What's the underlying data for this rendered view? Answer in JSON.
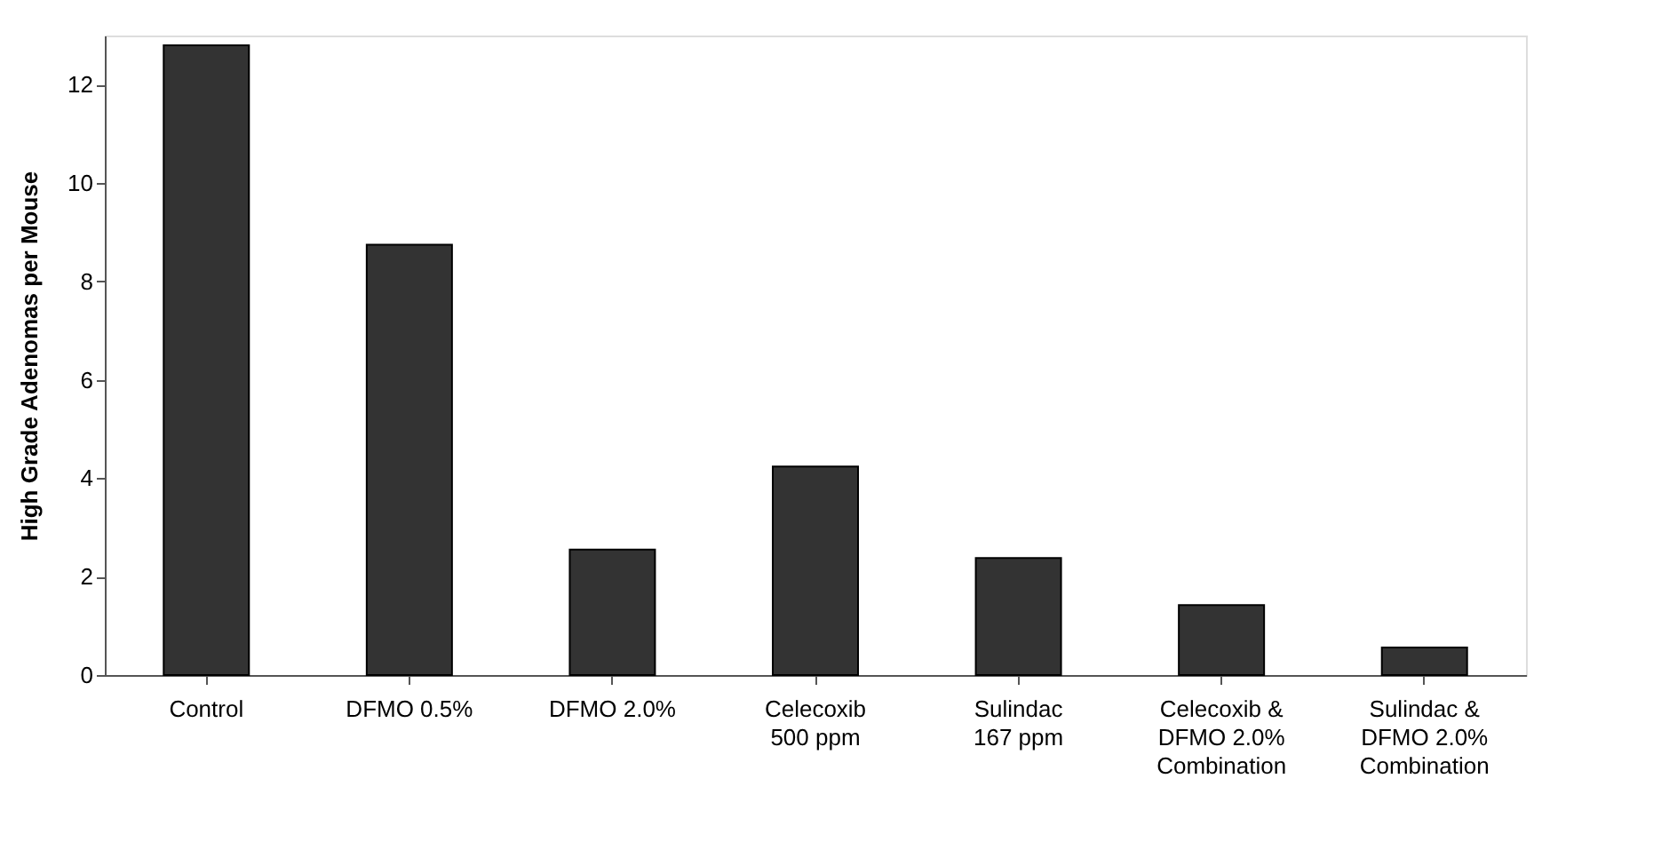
{
  "chart_data": {
    "type": "bar",
    "ylabel": "High Grade Adenomas per Mouse",
    "categories": [
      "Control",
      "DFMO 0.5%",
      "DFMO 2.0%",
      "Celecoxib\n500 ppm",
      "Sulindac\n167 ppm",
      "Celecoxib &\nDFMO 2.0%\nCombination",
      "Sulindac &\nDFMO 2.0%\nCombination"
    ],
    "values": [
      12.8,
      8.75,
      2.55,
      4.24,
      2.38,
      1.42,
      0.56
    ],
    "color": "#333333",
    "ylim": [
      0,
      13
    ],
    "yticks": [
      0,
      2,
      4,
      6,
      8,
      10,
      12
    ],
    "grid": false
  }
}
